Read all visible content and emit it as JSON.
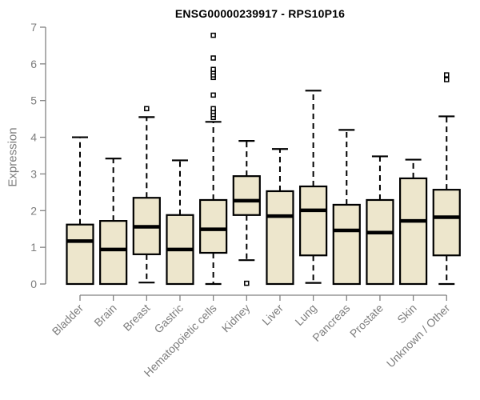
{
  "chart_data": {
    "type": "boxplot",
    "title": "ENSG00000239917 - RPS10P16",
    "ylabel": "Expression",
    "xlabel": "",
    "ylim": [
      0,
      7
    ],
    "yticks": [
      0,
      1,
      2,
      3,
      4,
      5,
      6,
      7
    ],
    "grid": false,
    "legend": "none",
    "categories": [
      "Bladder",
      "Brain",
      "Breast",
      "Gastric",
      "Hematopoietic cells",
      "Kidney",
      "Liver",
      "Lung",
      "Pancreas",
      "Prostate",
      "Skin",
      "Unknown / Other"
    ],
    "series": [
      {
        "name": "Bladder",
        "whisker_low": 0,
        "q1": 0,
        "median": 1.17,
        "q3": 1.62,
        "whisker_high": 4.0,
        "outliers": []
      },
      {
        "name": "Brain",
        "whisker_low": 0,
        "q1": 0,
        "median": 0.94,
        "q3": 1.72,
        "whisker_high": 3.42,
        "outliers": []
      },
      {
        "name": "Breast",
        "whisker_low": 0.04,
        "q1": 0.81,
        "median": 1.56,
        "q3": 2.35,
        "whisker_high": 4.55,
        "outliers": [
          4.78
        ]
      },
      {
        "name": "Gastric",
        "whisker_low": 0,
        "q1": 0,
        "median": 0.94,
        "q3": 1.88,
        "whisker_high": 3.37,
        "outliers": []
      },
      {
        "name": "Hematopoietic cells",
        "whisker_low": 0,
        "q1": 0.85,
        "median": 1.49,
        "q3": 2.29,
        "whisker_high": 4.42,
        "outliers": [
          4.54,
          4.62,
          4.7,
          4.78,
          5.15,
          5.63,
          5.7,
          5.78,
          5.85,
          6.16,
          6.78
        ]
      },
      {
        "name": "Kidney",
        "whisker_low": 0.65,
        "q1": 1.88,
        "median": 2.27,
        "q3": 2.94,
        "whisker_high": 3.9,
        "outliers": [
          0.02
        ]
      },
      {
        "name": "Liver",
        "whisker_low": 0,
        "q1": 0,
        "median": 1.85,
        "q3": 2.53,
        "whisker_high": 3.68,
        "outliers": []
      },
      {
        "name": "Lung",
        "whisker_low": 0.03,
        "q1": 0.78,
        "median": 2.01,
        "q3": 2.66,
        "whisker_high": 5.27,
        "outliers": []
      },
      {
        "name": "Pancreas",
        "whisker_low": 0,
        "q1": 0,
        "median": 1.46,
        "q3": 2.16,
        "whisker_high": 4.2,
        "outliers": []
      },
      {
        "name": "Prostate",
        "whisker_low": 0,
        "q1": 0,
        "median": 1.4,
        "q3": 2.29,
        "whisker_high": 3.48,
        "outliers": []
      },
      {
        "name": "Skin",
        "whisker_low": 0,
        "q1": 0,
        "median": 1.72,
        "q3": 2.88,
        "whisker_high": 3.39,
        "outliers": []
      },
      {
        "name": "Unknown / Other",
        "whisker_low": 0,
        "q1": 0.78,
        "median": 1.82,
        "q3": 2.57,
        "whisker_high": 4.57,
        "outliers": [
          5.57,
          5.7
        ]
      }
    ],
    "colors": {
      "box_fill": "#ede6cc",
      "box_border": "#000000",
      "median": "#000000",
      "whisker": "#000000",
      "outlier_stroke": "#000000",
      "outlier_fill": "#ffffff",
      "axis": "#828282",
      "tick_label": "#7d7d7d",
      "title": "#000000",
      "background": "#ffffff"
    }
  }
}
